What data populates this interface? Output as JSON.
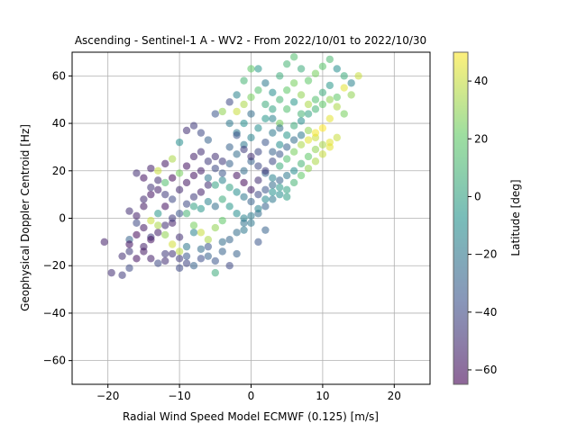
{
  "chart_data": {
    "type": "scatter",
    "title": "Ascending - Sentinel-1 A - WV2 - From 2022/10/01 to 2022/10/30",
    "xlabel": "Radial Wind Speed Model ECMWF (0.125) [m/s]",
    "ylabel": "Geophysical Doppler Centroid [Hz]",
    "xlim": [
      -25,
      25
    ],
    "ylim": [
      -70,
      70
    ],
    "xticks": [
      -20,
      -10,
      0,
      10,
      20
    ],
    "xtick_labels": [
      "−20",
      "−10",
      "0",
      "10",
      "20"
    ],
    "yticks": [
      -60,
      -40,
      -20,
      0,
      20,
      40,
      60
    ],
    "ytick_labels": [
      "−60",
      "−40",
      "−20",
      "0",
      "20",
      "40",
      "60"
    ],
    "grid": true,
    "colorbar": {
      "label": "Latitude [deg]",
      "range": [
        -65,
        50
      ],
      "ticks": [
        -60,
        -40,
        -20,
        0,
        20,
        40
      ],
      "tick_labels": [
        "−60",
        "−40",
        "−20",
        "0",
        "20",
        "40"
      ],
      "colormap": "viridis"
    },
    "series": [
      {
        "color_by": "latitude",
        "points": [
          [
            -20.5,
            -10,
            -55
          ],
          [
            -19.5,
            -23,
            -50
          ],
          [
            -18,
            -24,
            -45
          ],
          [
            -17,
            -21,
            -40
          ],
          [
            -18,
            -16,
            -50
          ],
          [
            -17,
            -14,
            -45
          ],
          [
            -16,
            -17,
            -60
          ],
          [
            -17,
            -9,
            -30
          ],
          [
            -16,
            -2,
            -40
          ],
          [
            -17,
            3,
            -50
          ],
          [
            -15,
            -12,
            -55
          ],
          [
            -14,
            -8,
            -45
          ],
          [
            -15,
            5,
            -58
          ],
          [
            -14,
            10,
            -60
          ],
          [
            -13,
            12,
            -55
          ],
          [
            -15,
            17,
            -60
          ],
          [
            -14,
            21,
            -55
          ],
          [
            -16,
            19,
            -50
          ],
          [
            -12,
            23,
            -58
          ],
          [
            -11,
            17,
            -62
          ],
          [
            -12,
            5,
            -60
          ],
          [
            -11,
            -2,
            -55
          ],
          [
            -10,
            -8,
            -50
          ],
          [
            -12,
            -15,
            -45
          ],
          [
            -13,
            -19,
            -40
          ],
          [
            -9,
            -16,
            -35
          ],
          [
            -8,
            -20,
            -30
          ],
          [
            -10,
            -21,
            -40
          ],
          [
            -9,
            -12,
            -20
          ],
          [
            -8,
            -6,
            -15
          ],
          [
            -7,
            -13,
            -25
          ],
          [
            -6,
            -16,
            -30
          ],
          [
            -5,
            -18,
            -35
          ],
          [
            -5,
            -23,
            5
          ],
          [
            -3,
            -20,
            -40
          ],
          [
            -2,
            -15,
            -30
          ],
          [
            -4,
            -10,
            -25
          ],
          [
            -1,
            -5,
            -20
          ],
          [
            1,
            -10,
            -35
          ],
          [
            2,
            -5,
            -30
          ],
          [
            -13,
            20,
            40
          ],
          [
            -11,
            25,
            35
          ],
          [
            -10,
            32,
            -10
          ],
          [
            -9,
            37,
            -50
          ],
          [
            -8,
            39,
            -45
          ],
          [
            -7,
            36,
            -40
          ],
          [
            -6,
            33,
            -30
          ],
          [
            -5,
            26,
            -50
          ],
          [
            -4,
            24,
            -45
          ],
          [
            -3,
            30,
            -30
          ],
          [
            -2,
            36,
            -20
          ],
          [
            -1,
            40,
            -10
          ],
          [
            0,
            44,
            -25
          ],
          [
            -5,
            44,
            -35
          ],
          [
            -3,
            49,
            -40
          ],
          [
            -4,
            45,
            30
          ],
          [
            -2,
            52,
            -15
          ],
          [
            -1,
            58,
            10
          ],
          [
            0,
            63,
            20
          ],
          [
            1,
            63,
            -5
          ],
          [
            2,
            57,
            -20
          ],
          [
            3,
            53,
            -10
          ],
          [
            4,
            60,
            5
          ],
          [
            5,
            65,
            10
          ],
          [
            6,
            68,
            15
          ],
          [
            7,
            63,
            5
          ],
          [
            8,
            58,
            20
          ],
          [
            9,
            61,
            25
          ],
          [
            10,
            64,
            18
          ],
          [
            11,
            67,
            12
          ],
          [
            12,
            63,
            -10
          ],
          [
            13,
            60,
            5
          ],
          [
            14,
            57,
            -15
          ],
          [
            15,
            60,
            40
          ],
          [
            14,
            52,
            30
          ],
          [
            12,
            47,
            35
          ],
          [
            13,
            44,
            25
          ],
          [
            11,
            42,
            45
          ],
          [
            10,
            38,
            50
          ],
          [
            9,
            34,
            40
          ],
          [
            8,
            37,
            30
          ],
          [
            7,
            44,
            10
          ],
          [
            6,
            49,
            -5
          ],
          [
            5,
            46,
            15
          ],
          [
            4,
            40,
            25
          ],
          [
            3,
            36,
            -20
          ],
          [
            2,
            32,
            -35
          ],
          [
            1,
            28,
            -40
          ],
          [
            0,
            24,
            -30
          ],
          [
            -1,
            20,
            -25
          ],
          [
            11,
            32,
            45
          ],
          [
            12,
            34,
            40
          ],
          [
            10,
            31,
            35
          ],
          [
            9,
            29,
            30
          ],
          [
            8,
            26,
            20
          ],
          [
            7,
            23,
            10
          ],
          [
            6,
            20,
            -10
          ],
          [
            5,
            18,
            -20
          ],
          [
            4,
            16,
            -30
          ],
          [
            3,
            14,
            -25
          ],
          [
            2,
            12,
            -35
          ],
          [
            1,
            10,
            -40
          ],
          [
            0,
            7,
            -30
          ],
          [
            -1,
            9,
            -20
          ],
          [
            -2,
            11,
            -10
          ],
          [
            -3,
            13,
            0
          ],
          [
            -4,
            16,
            -15
          ],
          [
            -6,
            14,
            -50
          ],
          [
            -7,
            11,
            -55
          ],
          [
            -8,
            9,
            -45
          ],
          [
            -9,
            6,
            -40
          ],
          [
            -10,
            2,
            -35
          ],
          [
            -11,
            0,
            -45
          ],
          [
            -12,
            -3,
            -50
          ],
          [
            -13,
            -6,
            -55
          ],
          [
            -14,
            -9,
            -60
          ],
          [
            -15,
            -4,
            -58
          ],
          [
            -16,
            1,
            -55
          ],
          [
            -15,
            8,
            -52
          ],
          [
            -14,
            13,
            -48
          ],
          [
            -13,
            16,
            -50
          ],
          [
            -12,
            10,
            -45
          ],
          [
            -11,
            8,
            -40
          ],
          [
            -10,
            12,
            -52
          ],
          [
            -9,
            15,
            -58
          ],
          [
            -8,
            18,
            -60
          ],
          [
            -7,
            20,
            -55
          ],
          [
            -6,
            17,
            -20
          ],
          [
            -5,
            14,
            0
          ],
          [
            -4,
            8,
            5
          ],
          [
            -3,
            5,
            -5
          ],
          [
            -2,
            2,
            -10
          ],
          [
            -1,
            0,
            -15
          ],
          [
            0,
            -2,
            -20
          ],
          [
            1,
            2,
            -25
          ],
          [
            2,
            5,
            -30
          ],
          [
            3,
            8,
            -20
          ],
          [
            4,
            10,
            -10
          ],
          [
            5,
            12,
            0
          ],
          [
            6,
            15,
            10
          ],
          [
            7,
            18,
            20
          ],
          [
            8,
            21,
            30
          ],
          [
            9,
            24,
            35
          ],
          [
            10,
            27,
            40
          ],
          [
            11,
            30,
            45
          ],
          [
            -14,
            -1,
            40
          ],
          [
            -13,
            -3,
            35
          ],
          [
            -12,
            -7,
            30
          ],
          [
            -11,
            -11,
            42
          ],
          [
            -10,
            -14,
            38
          ],
          [
            -8,
            -3,
            25
          ],
          [
            -7,
            -6,
            40
          ],
          [
            -6,
            -9,
            35
          ],
          [
            -5,
            -4,
            30
          ],
          [
            -4,
            -1,
            20
          ],
          [
            -9,
            2,
            10
          ],
          [
            -8,
            5,
            0
          ],
          [
            -7,
            4,
            -5
          ],
          [
            -6,
            7,
            -15
          ],
          [
            -5,
            5,
            -25
          ],
          [
            -13,
            2,
            -5
          ],
          [
            -12,
            15,
            15
          ],
          [
            -10,
            19,
            25
          ],
          [
            -9,
            22,
            -60
          ],
          [
            -8,
            26,
            -55
          ],
          [
            -7,
            28,
            -50
          ],
          [
            -6,
            24,
            -45
          ],
          [
            -5,
            21,
            -40
          ],
          [
            -4,
            19,
            -35
          ],
          [
            -3,
            23,
            -30
          ],
          [
            -2,
            27,
            -25
          ],
          [
            -1,
            31,
            -20
          ],
          [
            0,
            34,
            -15
          ],
          [
            1,
            38,
            -10
          ],
          [
            2,
            42,
            -5
          ],
          [
            3,
            46,
            0
          ],
          [
            4,
            50,
            10
          ],
          [
            5,
            54,
            20
          ],
          [
            6,
            57,
            25
          ],
          [
            7,
            52,
            30
          ],
          [
            8,
            48,
            35
          ],
          [
            9,
            50,
            15
          ],
          [
            10,
            53,
            5
          ],
          [
            11,
            56,
            -5
          ],
          [
            12,
            51,
            20
          ],
          [
            -2,
            45,
            40
          ],
          [
            -1,
            48,
            35
          ],
          [
            0,
            51,
            25
          ],
          [
            1,
            54,
            15
          ],
          [
            2,
            48,
            5
          ],
          [
            3,
            42,
            -15
          ],
          [
            4,
            38,
            -25
          ],
          [
            5,
            35,
            -5
          ],
          [
            6,
            39,
            5
          ],
          [
            7,
            41,
            -10
          ],
          [
            8,
            44,
            0
          ],
          [
            9,
            46,
            10
          ],
          [
            10,
            48,
            20
          ],
          [
            11,
            50,
            30
          ],
          [
            13,
            55,
            45
          ],
          [
            -3,
            40,
            -20
          ],
          [
            -2,
            35,
            -35
          ],
          [
            -1,
            29,
            -45
          ],
          [
            0,
            26,
            -50
          ],
          [
            1,
            22,
            -40
          ],
          [
            2,
            19,
            -30
          ],
          [
            3,
            17,
            -15
          ],
          [
            4,
            22,
            5
          ],
          [
            5,
            25,
            15
          ],
          [
            6,
            28,
            25
          ],
          [
            7,
            31,
            35
          ],
          [
            8,
            33,
            45
          ],
          [
            9,
            36,
            48
          ],
          [
            3,
            28,
            -30
          ],
          [
            4,
            31,
            -10
          ],
          [
            -17,
            -11,
            -60
          ],
          [
            -16,
            -7,
            -62
          ],
          [
            -15,
            -14,
            -58
          ],
          [
            -14,
            -17,
            -55
          ],
          [
            -12,
            -18,
            -50
          ],
          [
            -11,
            -15,
            -48
          ],
          [
            -10,
            -17,
            -45
          ],
          [
            -9,
            -19,
            -42
          ],
          [
            -7,
            -17,
            -38
          ],
          [
            -6,
            -12,
            -36
          ],
          [
            -4,
            -14,
            -30
          ],
          [
            -3,
            -9,
            -28
          ],
          [
            -2,
            -6,
            -25
          ],
          [
            -1,
            -2,
            -22
          ],
          [
            0,
            1,
            -18
          ],
          [
            1,
            4,
            -15
          ],
          [
            2,
            8,
            -12
          ],
          [
            3,
            11,
            -8
          ],
          [
            4,
            13,
            -4
          ],
          [
            5,
            9,
            -2
          ],
          [
            -2,
            18,
            -60
          ],
          [
            -1,
            15,
            -62
          ],
          [
            0,
            12,
            -55
          ],
          [
            1,
            16,
            -50
          ],
          [
            2,
            20,
            -45
          ],
          [
            3,
            24,
            -40
          ],
          [
            4,
            27,
            -35
          ],
          [
            5,
            30,
            -30
          ],
          [
            6,
            33,
            -25
          ],
          [
            7,
            35,
            -20
          ]
        ]
      }
    ]
  }
}
